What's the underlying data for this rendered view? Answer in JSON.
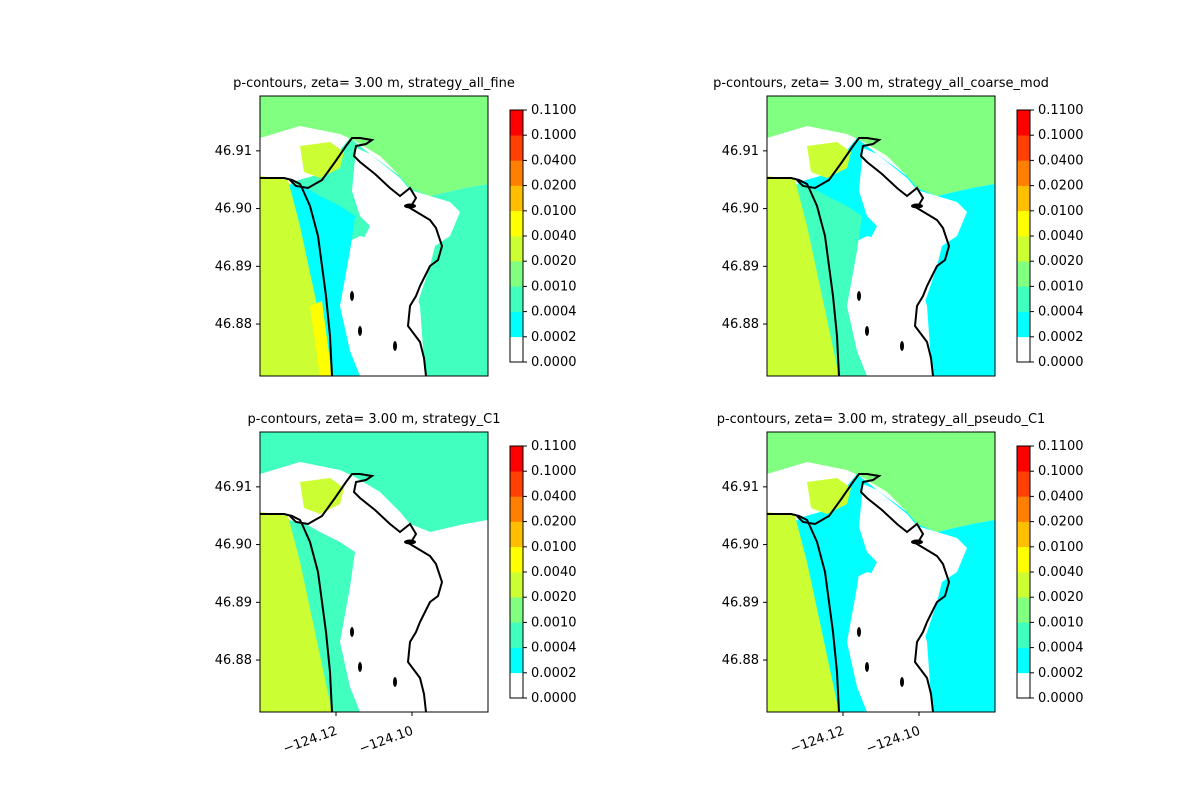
{
  "colorbar": {
    "levels": [
      "0.0000",
      "0.0002",
      "0.0004",
      "0.0010",
      "0.0020",
      "0.0040",
      "0.0100",
      "0.0200",
      "0.0400",
      "0.1000",
      "0.1100"
    ],
    "colors": [
      "#ffffff",
      "#00ffff",
      "#40ffbf",
      "#80ff80",
      "#ccff33",
      "#ffff00",
      "#ffbf00",
      "#ff8000",
      "#ff4000",
      "#ff0000"
    ]
  },
  "axes": {
    "y_ticks": [
      46.91,
      46.9,
      46.89,
      46.88
    ],
    "y_tick_labels": [
      "46.91",
      "46.90",
      "46.89",
      "46.88"
    ],
    "x_ticks": [
      -124.12,
      -124.1
    ],
    "x_tick_labels": [
      "−124.12",
      "−124.10"
    ],
    "xlim": [
      -124.14,
      -124.08
    ],
    "ylim": [
      46.871,
      46.9195
    ]
  },
  "chart_data": [
    {
      "type": "heatmap",
      "title": "p-contours, zeta= 3.00 m, strategy_all_fine",
      "ocean_level": "0.0020-0.0040",
      "offshore_band_level": "0.0040-0.0100",
      "nearshore_level": "0.0002-0.0004",
      "bay_level": "0.0004-0.0010",
      "north_level": "0.0010-0.0020"
    },
    {
      "type": "heatmap",
      "title": "p-contours, zeta= 3.00 m, strategy_all_coarse_mod",
      "ocean_level": "0.0020-0.0040",
      "nearshore_level": "0.0004-0.0010",
      "bay_level": "0.0002-0.0004",
      "north_level": "0.0010-0.0020"
    },
    {
      "type": "heatmap",
      "title": "p-contours, zeta= 3.00 m, strategy_C1",
      "ocean_level": "0.0020-0.0040",
      "nearshore_level": "0.0004-0.0010",
      "bay_level": "0.0000-0.0002",
      "north_level": "0.0004-0.0010"
    },
    {
      "type": "heatmap",
      "title": "p-contours, zeta= 3.00 m, strategy_all_pseudo_C1",
      "ocean_level": "0.0020-0.0040",
      "nearshore_level": "0.0002-0.0004",
      "bay_level": "0.0002-0.0004",
      "north_level": "0.0010-0.0020"
    }
  ]
}
